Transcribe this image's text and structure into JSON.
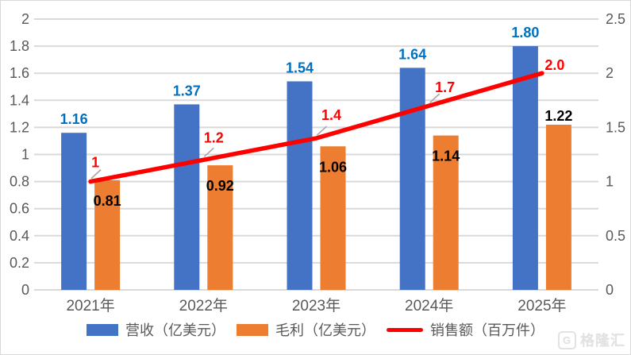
{
  "chart_data": {
    "type": "bar",
    "subtype": "combo-bar-line-dual-axis",
    "title": "",
    "categories": [
      "2021年",
      "2022年",
      "2023年",
      "2024年",
      "2025年"
    ],
    "series": [
      {
        "name": "营收（亿美元）",
        "type": "bar",
        "axis": "left",
        "color": "#4472C4",
        "label_color": "#0070C0",
        "values": [
          1.16,
          1.37,
          1.54,
          1.64,
          1.8
        ],
        "labels": [
          "1.16",
          "1.37",
          "1.54",
          "1.64",
          "1.80"
        ]
      },
      {
        "name": "毛利（亿美元）",
        "type": "bar",
        "axis": "left",
        "color": "#ED7D31",
        "label_color": "#000000",
        "values": [
          0.81,
          0.92,
          1.06,
          1.14,
          1.22
        ],
        "labels": [
          "0.81",
          "0.92",
          "1.06",
          "1.14",
          "1.22"
        ],
        "label_placement": [
          "inside",
          "inside",
          "inside",
          "inside",
          "outside"
        ]
      },
      {
        "name": "销售额（百万件）",
        "type": "line",
        "axis": "right",
        "color": "#FF0000",
        "label_color": "#FF0000",
        "values": [
          1,
          1.2,
          1.4,
          1.7,
          2.0
        ],
        "labels": [
          "1",
          "1.2",
          "1.4",
          "1.7",
          "2.0"
        ]
      }
    ],
    "left_axis": {
      "min": 0,
      "max": 2,
      "step": 0.2,
      "ticks": [
        "0",
        "0.2",
        "0.4",
        "0.6",
        "0.8",
        "1",
        "1.2",
        "1.4",
        "1.6",
        "1.8",
        "2"
      ]
    },
    "right_axis": {
      "min": 0,
      "max": 2.5,
      "step": 0.5,
      "ticks": [
        "0",
        "0.5",
        "1",
        "1.5",
        "2",
        "2.5"
      ]
    },
    "grid": true,
    "legend_position": "bottom"
  },
  "colors": {
    "grid": "#D9D9D9",
    "tick_text": "#595959",
    "x_label_text": "#595959",
    "leader": "#A6A6A6",
    "background": "#FFFFFF"
  },
  "watermark": {
    "text": "格隆汇"
  }
}
